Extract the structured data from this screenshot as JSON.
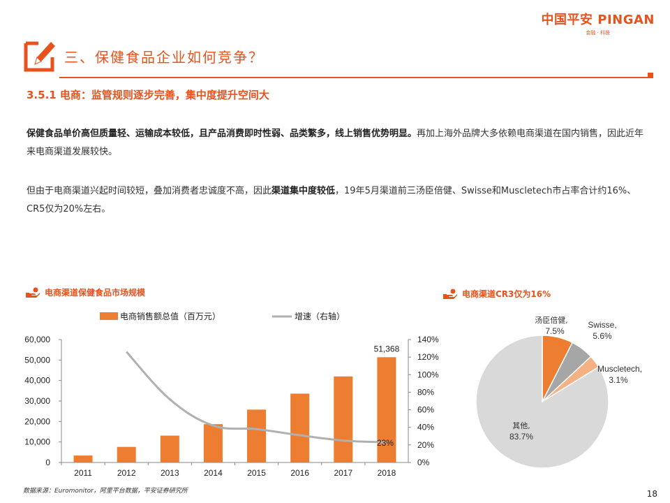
{
  "logo": {
    "main": "中国平安 PINGAN",
    "sub": "金融 · 科技"
  },
  "section_title": "三、保健食品企业如何竞争？",
  "subheading": "3.5.1  电商：监管规则逐步完善，集中度提升空间大",
  "paragraph1": {
    "bold": "保健食品单价高但质量轻、运输成本较低，且产品消费即时性弱、品类繁多，线上销售优势明显。",
    "rest": "再加上海外品牌大多依赖电商渠道在国内销售，因此近年来电商渠道发展较快。"
  },
  "paragraph2": {
    "part1": "但由于电商渠道兴起时间较短，叠加消费者忠诚度不高，因此",
    "bold": "渠道集中度较低",
    "part2": "，19年5月渠道前三汤臣倍健、Swisse和Muscletech市占率合计约16%、CR5仅为20%左右。"
  },
  "left_chart_heading": "电商渠道保健食品市场规模",
  "right_chart_heading": "电商渠道CR3仅为16%",
  "source": "数据来源：Euromonitor，阿里平台数据，平安证券研究所",
  "page_number": "18",
  "colors": {
    "accent": "#e8521d",
    "bar": "#ed7d31",
    "line": "#b0b0b0",
    "other": "#d9d9d9",
    "swisse": "#a6a6a6",
    "muscle": "#f4b183"
  },
  "chart_data": [
    {
      "type": "bar",
      "categories": [
        "2011",
        "2012",
        "2013",
        "2014",
        "2015",
        "2016",
        "2017",
        "2018"
      ],
      "series": [
        {
          "name": "电商销售额总值（百万元）",
          "axis": "left",
          "values": [
            3400,
            7600,
            13100,
            18700,
            25800,
            33600,
            42000,
            51368
          ]
        },
        {
          "name": "增速（右轴）",
          "axis": "right",
          "type": "line",
          "values": [
            null,
            126,
            72,
            42,
            38,
            31,
            25,
            23
          ]
        }
      ],
      "ylim_left": [
        0,
        60000
      ],
      "yticks_left": [
        "0",
        "10,000",
        "20,000",
        "30,000",
        "40,000",
        "50,000",
        "60,000"
      ],
      "ylim_right": [
        0,
        140
      ],
      "yticks_right": [
        "0%",
        "20%",
        "40%",
        "60%",
        "80%",
        "100%",
        "120%",
        "140%"
      ],
      "annotations": [
        "51,368",
        "23%"
      ],
      "legend": "top"
    },
    {
      "type": "pie",
      "slices": [
        {
          "label": "汤臣倍健,",
          "pct": "7.5%",
          "value": 7.5
        },
        {
          "label": "Swisse,",
          "pct": "5.6%",
          "value": 5.6
        },
        {
          "label": "Muscletech,",
          "pct": "3.1%",
          "value": 3.1
        },
        {
          "label": "其他,",
          "pct": "83.7%",
          "value": 83.7
        }
      ]
    }
  ]
}
